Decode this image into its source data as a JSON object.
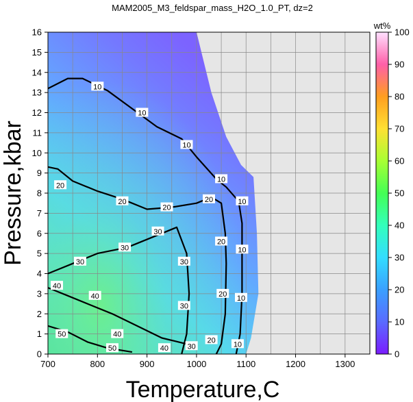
{
  "chart_data": {
    "type": "heatmap",
    "title": "MAM2005_M3_feldspar_mass_H2O_1.0_PT, dz=2",
    "xlabel": "Temperature,C",
    "ylabel": "Pressure,kbar",
    "xlim": [
      700,
      1350
    ],
    "ylim": [
      0,
      16
    ],
    "x_ticks": [
      "700",
      "800",
      "900",
      "1000",
      "1100",
      "1200",
      "1300"
    ],
    "y_ticks": [
      "0",
      "1",
      "2",
      "3",
      "4",
      "5",
      "6",
      "7",
      "8",
      "9",
      "10",
      "11",
      "12",
      "13",
      "14",
      "15",
      "16"
    ],
    "grid": true,
    "colorbar": {
      "unit": "wt%",
      "range": [
        0,
        100
      ],
      "ticks": [
        "0",
        "10",
        "20",
        "30",
        "40",
        "50",
        "60",
        "70",
        "80",
        "90",
        "100"
      ],
      "colors": [
        "#7a1cff",
        "#5a6bff",
        "#3aa0ff",
        "#33ddff",
        "#33ffbb",
        "#44ff55",
        "#a8ff33",
        "#ffe033",
        "#ff9e1f",
        "#ff5fa8",
        "#ffe0ff"
      ]
    },
    "stability_boundary": [
      {
        "T": 700,
        "P": 16
      },
      {
        "T": 1000,
        "P": 16
      },
      {
        "T": 1030,
        "P": 13
      },
      {
        "T": 1060,
        "P": 10.8
      },
      {
        "T": 1090,
        "P": 9.4
      },
      {
        "T": 1115,
        "P": 8.8
      },
      {
        "T": 1122,
        "P": 6
      },
      {
        "T": 1125,
        "P": 3
      },
      {
        "T": 1110,
        "P": 0.8
      },
      {
        "T": 1100,
        "P": 0
      },
      {
        "T": 700,
        "P": 0
      }
    ],
    "contours": [
      {
        "level": "10",
        "points": [
          [
            700,
            13.2
          ],
          [
            740,
            13.7
          ],
          [
            770,
            13.7
          ],
          [
            820,
            13.1
          ],
          [
            870,
            12.2
          ],
          [
            920,
            11.3
          ],
          [
            970,
            10.7
          ],
          [
            1000,
            9.8
          ],
          [
            1040,
            8.7
          ],
          [
            1060,
            8.3
          ],
          [
            1085,
            7.6
          ],
          [
            1092,
            6.5
          ],
          [
            1092,
            3
          ],
          [
            1088,
            1
          ],
          [
            1080,
            0
          ]
        ],
        "labels": [
          {
            "T": 800,
            "P": 13.3
          },
          {
            "T": 890,
            "P": 12.0
          },
          {
            "T": 980,
            "P": 10.4
          },
          {
            "T": 1050,
            "P": 8.7
          },
          {
            "T": 1092,
            "P": 7.6
          },
          {
            "T": 1092,
            "P": 5.2
          },
          {
            "T": 1090,
            "P": 2.8
          },
          {
            "T": 1083,
            "P": 0.5
          }
        ]
      },
      {
        "level": "20",
        "points": [
          [
            700,
            9.3
          ],
          [
            720,
            9.2
          ],
          [
            750,
            8.6
          ],
          [
            800,
            8.1
          ],
          [
            850,
            7.7
          ],
          [
            900,
            7.2
          ],
          [
            950,
            7.3
          ],
          [
            1000,
            7.5
          ],
          [
            1030,
            7.8
          ],
          [
            1050,
            7.5
          ],
          [
            1058,
            6
          ],
          [
            1060,
            4.5
          ],
          [
            1058,
            2
          ],
          [
            1050,
            0.5
          ],
          [
            1040,
            0
          ]
        ],
        "labels": [
          {
            "T": 725,
            "P": 8.4
          },
          {
            "T": 850,
            "P": 7.6
          },
          {
            "T": 940,
            "P": 7.3
          },
          {
            "T": 1025,
            "P": 7.7
          },
          {
            "T": 1050,
            "P": 5.6
          },
          {
            "T": 1053,
            "P": 3.0
          },
          {
            "T": 1030,
            "P": 0.7
          }
        ]
      },
      {
        "level": "30",
        "points": [
          [
            700,
            4.0
          ],
          [
            750,
            4.5
          ],
          [
            800,
            5.0
          ],
          [
            860,
            5.3
          ],
          [
            920,
            5.9
          ],
          [
            960,
            6.3
          ],
          [
            980,
            5
          ],
          [
            985,
            3
          ],
          [
            980,
            1
          ],
          [
            970,
            0
          ]
        ],
        "labels": [
          {
            "T": 765,
            "P": 4.6
          },
          {
            "T": 855,
            "P": 5.3
          },
          {
            "T": 922,
            "P": 6.1
          },
          {
            "T": 975,
            "P": 4.6
          },
          {
            "T": 975,
            "P": 2.4
          },
          {
            "T": 990,
            "P": 0.4
          }
        ]
      },
      {
        "level": "40",
        "points": [
          [
            700,
            3.3
          ],
          [
            740,
            2.9
          ],
          [
            780,
            2.5
          ],
          [
            830,
            2.0
          ],
          [
            880,
            1.4
          ],
          [
            930,
            0.8
          ],
          [
            980,
            0.5
          ]
        ],
        "labels": [
          {
            "T": 718,
            "P": 3.4
          },
          {
            "T": 795,
            "P": 2.9
          },
          {
            "T": 840,
            "P": 1.0
          },
          {
            "T": 935,
            "P": 0.3
          }
        ]
      },
      {
        "level": "50",
        "points": [
          [
            700,
            1.4
          ],
          [
            740,
            1.1
          ],
          [
            780,
            0.6
          ],
          [
            820,
            0.3
          ],
          [
            870,
            0.1
          ]
        ],
        "labels": [
          {
            "T": 728,
            "P": 1.0
          },
          {
            "T": 830,
            "P": 0.3
          }
        ]
      }
    ]
  }
}
